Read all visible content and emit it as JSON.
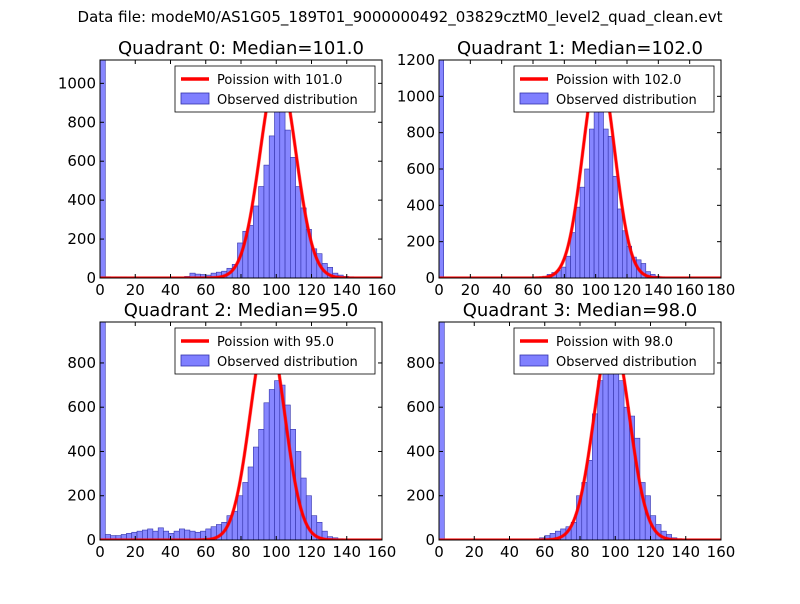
{
  "page": {
    "suptitle": "Data file: modeM0/AS1G05_189T01_9000000492_03829cztM0_level2_quad_clean.evt"
  },
  "colors": {
    "bars": "#7f7fff",
    "bar_edge": "#3333aa",
    "fit": "#ff0000",
    "axis": "#000000"
  },
  "chart_data": [
    {
      "type": "bar",
      "title": "Quadrant 0: Median=101.0",
      "xlim": [
        0,
        160
      ],
      "ylim": [
        0,
        1120
      ],
      "xticks": [
        0,
        20,
        40,
        60,
        80,
        100,
        120,
        140,
        160
      ],
      "yticks": [
        0,
        200,
        400,
        600,
        800,
        1000
      ],
      "bin_width": 3,
      "bars": [
        [
          0,
          1120
        ],
        [
          3,
          5
        ],
        [
          6,
          4
        ],
        [
          9,
          4
        ],
        [
          12,
          4
        ],
        [
          15,
          3
        ],
        [
          18,
          3
        ],
        [
          21,
          3
        ],
        [
          24,
          3
        ],
        [
          27,
          3
        ],
        [
          30,
          3
        ],
        [
          33,
          3
        ],
        [
          36,
          3
        ],
        [
          39,
          3
        ],
        [
          42,
          3
        ],
        [
          45,
          3
        ],
        [
          48,
          8
        ],
        [
          51,
          25
        ],
        [
          54,
          20
        ],
        [
          57,
          18
        ],
        [
          60,
          15
        ],
        [
          63,
          25
        ],
        [
          66,
          30
        ],
        [
          69,
          35
        ],
        [
          72,
          50
        ],
        [
          75,
          70
        ],
        [
          78,
          180
        ],
        [
          81,
          240
        ],
        [
          84,
          270
        ],
        [
          87,
          370
        ],
        [
          90,
          470
        ],
        [
          93,
          580
        ],
        [
          96,
          730
        ],
        [
          99,
          860
        ],
        [
          102,
          870
        ],
        [
          105,
          760
        ],
        [
          108,
          620
        ],
        [
          111,
          470
        ],
        [
          114,
          360
        ],
        [
          117,
          250
        ],
        [
          120,
          150
        ],
        [
          123,
          125
        ],
        [
          126,
          75
        ],
        [
          129,
          55
        ],
        [
          132,
          25
        ],
        [
          135,
          15
        ],
        [
          138,
          8
        ],
        [
          141,
          5
        ],
        [
          144,
          3
        ],
        [
          147,
          2
        ],
        [
          150,
          1
        ],
        [
          153,
          1
        ]
      ],
      "fit": {
        "label": "Poission with 101.0",
        "mean": 101.0,
        "amplitude": 1075,
        "sigma": 10.05
      },
      "legend": {
        "poisson_label": "Poission with 101.0",
        "observed_label": "Observed distribution",
        "position": "upper right"
      }
    },
    {
      "type": "bar",
      "title": "Quadrant 1: Median=102.0",
      "xlim": [
        0,
        180
      ],
      "ylim": [
        0,
        1200
      ],
      "xticks": [
        0,
        20,
        40,
        60,
        80,
        100,
        120,
        140,
        160,
        180
      ],
      "yticks": [
        0,
        200,
        400,
        600,
        800,
        1000,
        1200
      ],
      "bin_width": 3,
      "bars": [
        [
          0,
          1200
        ],
        [
          3,
          3
        ],
        [
          6,
          2
        ],
        [
          9,
          2
        ],
        [
          12,
          2
        ],
        [
          15,
          2
        ],
        [
          18,
          2
        ],
        [
          21,
          2
        ],
        [
          24,
          2
        ],
        [
          27,
          2
        ],
        [
          30,
          2
        ],
        [
          33,
          2
        ],
        [
          36,
          2
        ],
        [
          39,
          2
        ],
        [
          42,
          2
        ],
        [
          45,
          2
        ],
        [
          48,
          2
        ],
        [
          51,
          2
        ],
        [
          54,
          3
        ],
        [
          57,
          3
        ],
        [
          60,
          4
        ],
        [
          63,
          5
        ],
        [
          66,
          8
        ],
        [
          69,
          20
        ],
        [
          72,
          30
        ],
        [
          75,
          40
        ],
        [
          78,
          60
        ],
        [
          81,
          120
        ],
        [
          84,
          250
        ],
        [
          87,
          390
        ],
        [
          90,
          500
        ],
        [
          93,
          600
        ],
        [
          96,
          820
        ],
        [
          99,
          1050
        ],
        [
          102,
          1030
        ],
        [
          105,
          820
        ],
        [
          108,
          780
        ],
        [
          111,
          560
        ],
        [
          114,
          380
        ],
        [
          117,
          260
        ],
        [
          120,
          175
        ],
        [
          123,
          115
        ],
        [
          126,
          100
        ],
        [
          129,
          80
        ],
        [
          132,
          35
        ],
        [
          135,
          20
        ],
        [
          138,
          10
        ],
        [
          141,
          5
        ],
        [
          144,
          3
        ]
      ],
      "fit": {
        "label": "Poission with 102.0",
        "mean": 102.0,
        "amplitude": 1160,
        "sigma": 10.1
      },
      "legend": {
        "poisson_label": "Poission with 102.0",
        "observed_label": "Observed distribution",
        "position": "upper right"
      }
    },
    {
      "type": "bar",
      "title": "Quadrant 2: Median=95.0",
      "xlim": [
        0,
        160
      ],
      "ylim": [
        0,
        985
      ],
      "xticks": [
        0,
        20,
        40,
        60,
        80,
        100,
        120,
        140,
        160
      ],
      "yticks": [
        0,
        200,
        400,
        600,
        800
      ],
      "bin_width": 3,
      "bars": [
        [
          0,
          985
        ],
        [
          3,
          25
        ],
        [
          6,
          20
        ],
        [
          9,
          20
        ],
        [
          12,
          25
        ],
        [
          15,
          30
        ],
        [
          18,
          35
        ],
        [
          21,
          40
        ],
        [
          24,
          45
        ],
        [
          27,
          50
        ],
        [
          30,
          40
        ],
        [
          33,
          55
        ],
        [
          36,
          40
        ],
        [
          39,
          30
        ],
        [
          42,
          40
        ],
        [
          45,
          50
        ],
        [
          48,
          45
        ],
        [
          51,
          40
        ],
        [
          54,
          35
        ],
        [
          57,
          40
        ],
        [
          60,
          50
        ],
        [
          63,
          60
        ],
        [
          66,
          70
        ],
        [
          69,
          80
        ],
        [
          72,
          110
        ],
        [
          75,
          130
        ],
        [
          78,
          200
        ],
        [
          81,
          260
        ],
        [
          84,
          330
        ],
        [
          87,
          420
        ],
        [
          90,
          500
        ],
        [
          93,
          620
        ],
        [
          96,
          680
        ],
        [
          99,
          720
        ],
        [
          102,
          700
        ],
        [
          105,
          610
        ],
        [
          108,
          500
        ],
        [
          111,
          400
        ],
        [
          114,
          280
        ],
        [
          117,
          200
        ],
        [
          120,
          110
        ],
        [
          123,
          80
        ],
        [
          126,
          40
        ],
        [
          129,
          15
        ],
        [
          132,
          10
        ],
        [
          135,
          5
        ],
        [
          138,
          3
        ],
        [
          141,
          2
        ],
        [
          144,
          1
        ],
        [
          147,
          1
        ]
      ],
      "fit": {
        "label": "Poission with 95.0",
        "mean": 95.0,
        "amplitude": 945,
        "sigma": 9.75
      },
      "legend": {
        "poisson_label": "Poission with 95.0",
        "observed_label": "Observed distribution",
        "position": "upper right"
      }
    },
    {
      "type": "bar",
      "title": "Quadrant 3: Median=98.0",
      "xlim": [
        0,
        160
      ],
      "ylim": [
        0,
        985
      ],
      "xticks": [
        0,
        20,
        40,
        60,
        80,
        100,
        120,
        140,
        160
      ],
      "yticks": [
        0,
        200,
        400,
        600,
        800
      ],
      "bin_width": 3,
      "bars": [
        [
          0,
          985
        ],
        [
          3,
          2
        ],
        [
          6,
          2
        ],
        [
          9,
          2
        ],
        [
          12,
          2
        ],
        [
          15,
          2
        ],
        [
          18,
          2
        ],
        [
          21,
          2
        ],
        [
          24,
          2
        ],
        [
          27,
          2
        ],
        [
          30,
          2
        ],
        [
          33,
          2
        ],
        [
          36,
          2
        ],
        [
          39,
          2
        ],
        [
          42,
          2
        ],
        [
          45,
          2
        ],
        [
          48,
          2
        ],
        [
          51,
          3
        ],
        [
          54,
          4
        ],
        [
          57,
          10
        ],
        [
          60,
          20
        ],
        [
          63,
          30
        ],
        [
          66,
          40
        ],
        [
          69,
          50
        ],
        [
          72,
          60
        ],
        [
          75,
          80
        ],
        [
          78,
          200
        ],
        [
          81,
          260
        ],
        [
          84,
          360
        ],
        [
          87,
          570
        ],
        [
          90,
          720
        ],
        [
          93,
          900
        ],
        [
          96,
          940
        ],
        [
          99,
          870
        ],
        [
          102,
          720
        ],
        [
          105,
          600
        ],
        [
          108,
          560
        ],
        [
          111,
          460
        ],
        [
          114,
          260
        ],
        [
          117,
          200
        ],
        [
          120,
          110
        ],
        [
          123,
          70
        ],
        [
          126,
          40
        ],
        [
          129,
          25
        ],
        [
          132,
          10
        ],
        [
          135,
          5
        ],
        [
          138,
          3
        ]
      ],
      "fit": {
        "label": "Poission with 98.0",
        "mean": 98.0,
        "amplitude": 935,
        "sigma": 9.9
      },
      "legend": {
        "poisson_label": "Poission with 98.0",
        "observed_label": "Observed distribution",
        "position": "upper right"
      }
    }
  ]
}
